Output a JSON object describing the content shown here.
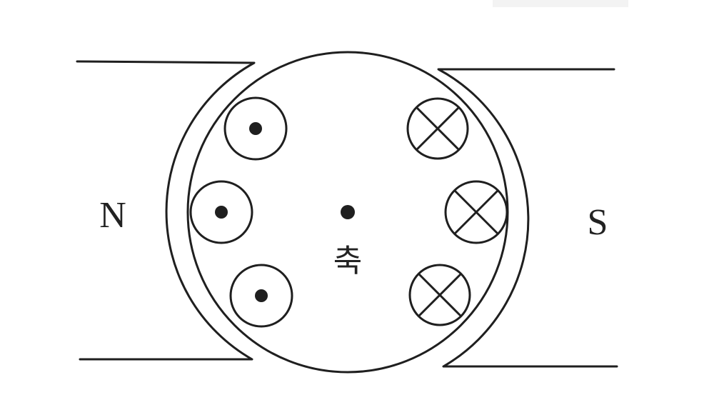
{
  "diagram": {
    "north_pole_label": "N",
    "south_pole_label": "S",
    "axis_label": "축",
    "conductors_left": [
      {
        "direction": "out-of-page",
        "symbol": "dot"
      },
      {
        "direction": "out-of-page",
        "symbol": "dot"
      },
      {
        "direction": "out-of-page",
        "symbol": "dot"
      }
    ],
    "conductors_right": [
      {
        "direction": "into-page",
        "symbol": "cross"
      },
      {
        "direction": "into-page",
        "symbol": "cross"
      },
      {
        "direction": "into-page",
        "symbol": "cross"
      }
    ],
    "colors": {
      "ink": "#1f1f1f",
      "background": "#ffffff"
    }
  }
}
